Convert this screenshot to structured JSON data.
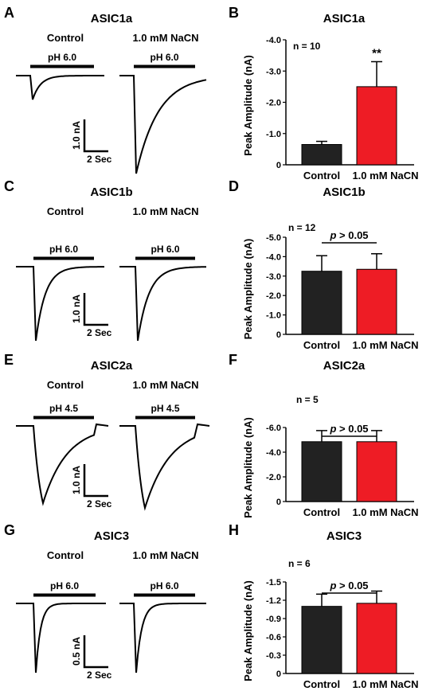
{
  "colors": {
    "control": "#222222",
    "nacn": "#ee1c25"
  },
  "chart_data": [
    {
      "type": "bar",
      "panel_letter": "B",
      "trace_letter": "A",
      "title": "ASIC1a",
      "ylabel": "Peak Amplitude (nA)",
      "categories": [
        "Control",
        "1.0 mM NaCN"
      ],
      "values": [
        0.65,
        2.5
      ],
      "errors": [
        0.1,
        0.8
      ],
      "ylim": [
        0,
        4.0
      ],
      "yticks": [
        "0",
        "-1.0",
        "-2.0",
        "-3.0",
        "-4.0"
      ],
      "n_label": "n = 10",
      "annotation": "**",
      "control_label": "Control",
      "nacn_label": "1.0 mM NaCN",
      "ph_label": "pH 6.0",
      "scale_amp": "1.0 nA",
      "scale_time": "2 Sec"
    },
    {
      "type": "bar",
      "panel_letter": "D",
      "trace_letter": "C",
      "title": "ASIC1b",
      "ylabel": "Peak Amplitude (nA)",
      "categories": [
        "Control",
        "1.0 mM NaCN"
      ],
      "values": [
        3.25,
        3.35
      ],
      "errors": [
        0.8,
        0.8
      ],
      "ylim": [
        0,
        5.0
      ],
      "yticks": [
        "0",
        "-1.0",
        "-2.0",
        "-3.0",
        "-4.0",
        "-5.0"
      ],
      "n_label": "n = 12",
      "annotation": "p > 0.05",
      "control_label": "Control",
      "nacn_label": "1.0 mM NaCN",
      "ph_label": "pH 6.0",
      "scale_amp": "1.0 nA",
      "scale_time": "2 Sec"
    },
    {
      "type": "bar",
      "panel_letter": "F",
      "trace_letter": "E",
      "title": "ASIC2a",
      "ylabel": "Peak Amplitude (nA)",
      "categories": [
        "Control",
        "1.0 mM NaCN"
      ],
      "values": [
        4.85,
        4.85
      ],
      "errors": [
        0.9,
        0.9
      ],
      "ylim": [
        0,
        6.0
      ],
      "yticks": [
        "0",
        "-2.0",
        "-4.0",
        "-6.0"
      ],
      "n_label": "n = 5",
      "annotation": "p > 0.05",
      "control_label": "Control",
      "nacn_label": "1.0 mM NaCN",
      "ph_label": "pH 4.5",
      "scale_amp": "1.0 nA",
      "scale_time": "2 Sec"
    },
    {
      "type": "bar",
      "panel_letter": "H",
      "trace_letter": "G",
      "title": "ASIC3",
      "ylabel": "Peak Amplitude (nA)",
      "categories": [
        "Control",
        "1.0 mM NaCN"
      ],
      "values": [
        1.1,
        1.15
      ],
      "errors": [
        0.2,
        0.2
      ],
      "ylim": [
        0,
        1.5
      ],
      "yticks": [
        "0",
        "-0.3",
        "-0.6",
        "-0.9",
        "-1.2",
        "-1.5"
      ],
      "n_label": "n = 6",
      "annotation": "p > 0.05",
      "control_label": "Control",
      "nacn_label": "1.0 mM NaCN",
      "ph_label": "pH 6.0",
      "scale_amp": "0.5 nA",
      "scale_time": "2 Sec"
    }
  ]
}
